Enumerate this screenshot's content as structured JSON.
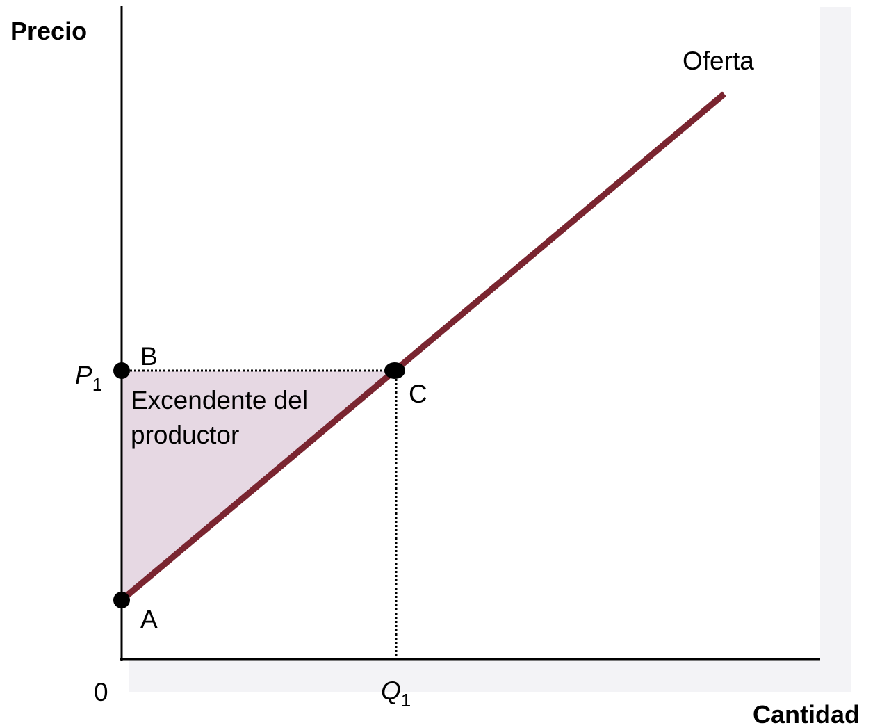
{
  "diagram": {
    "y_axis_label": "Precio",
    "x_axis_label": "Cantidad",
    "origin_label": "0",
    "price": {
      "symbol": "P",
      "subscript": "1"
    },
    "quantity": {
      "symbol": "Q",
      "subscript": "1"
    },
    "curve_label": "Oferta",
    "points": {
      "a": "A",
      "b": "B",
      "c": "C"
    },
    "area_label": [
      "Excendente del",
      "productor"
    ]
  }
}
